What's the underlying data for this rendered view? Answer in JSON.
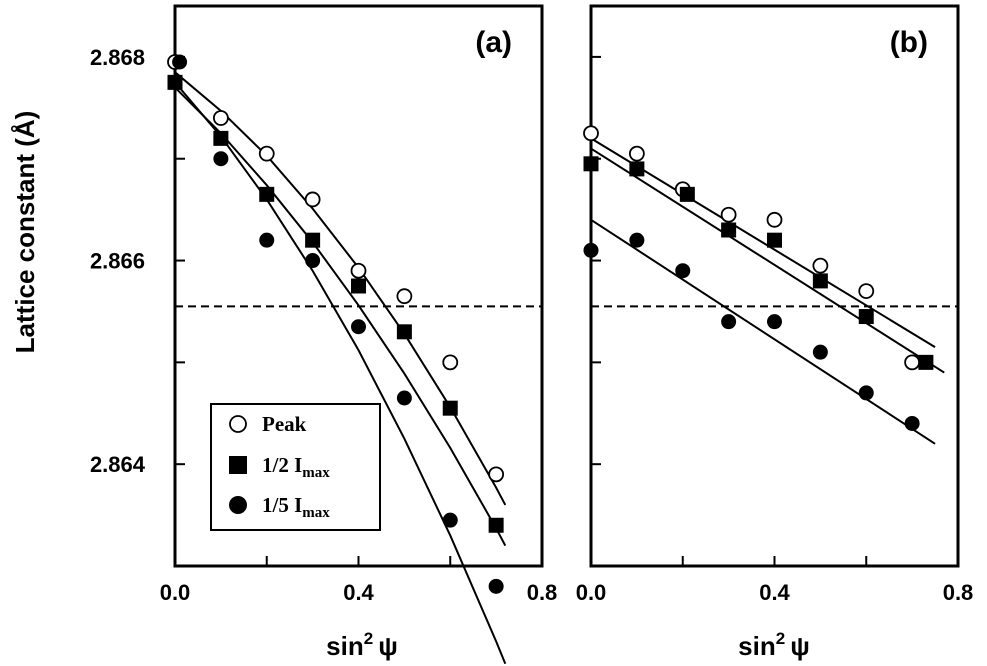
{
  "chart_data": [
    {
      "type": "scatter",
      "panel_label": "(a)",
      "xlabel": "sin",
      "xlabel_sup": "2",
      "xlabel_tail": "ψ",
      "ylabel": "Lattice constant (Å)",
      "xlim": [
        0.0,
        0.8
      ],
      "ylim": [
        2.863,
        2.8685
      ],
      "x_ticks": [
        "0.0",
        "0.4",
        "0.8"
      ],
      "y_ticks": [
        "2.868",
        "2.866",
        "2.864"
      ],
      "reference_line": 2.86555,
      "series": [
        {
          "name": "Peak",
          "marker": "open-circle",
          "points": [
            [
              0.0,
              2.86795
            ],
            [
              0.1,
              2.8674
            ],
            [
              0.2,
              2.86705
            ],
            [
              0.3,
              2.8666
            ],
            [
              0.4,
              2.8659
            ],
            [
              0.5,
              2.86565
            ],
            [
              0.6,
              2.865
            ],
            [
              0.7,
              2.8639
            ]
          ],
          "fit": [
            [
              0.0,
              2.86785
            ],
            [
              0.1,
              2.86747
            ],
            [
              0.2,
              2.86703
            ],
            [
              0.3,
              2.86651
            ],
            [
              0.4,
              2.86593
            ],
            [
              0.5,
              2.86528
            ],
            [
              0.6,
              2.86456
            ],
            [
              0.7,
              2.86377
            ],
            [
              0.72,
              2.8636
            ]
          ]
        },
        {
          "name": "1/2 I",
          "name_sub": "max",
          "marker": "filled-square",
          "points": [
            [
              0.0,
              2.86775
            ],
            [
              0.1,
              2.8672
            ],
            [
              0.2,
              2.86665
            ],
            [
              0.3,
              2.8662
            ],
            [
              0.4,
              2.86575
            ],
            [
              0.5,
              2.8653
            ],
            [
              0.6,
              2.86455
            ],
            [
              0.7,
              2.8634
            ]
          ],
          "fit": [
            [
              0.0,
              2.8677
            ],
            [
              0.1,
              2.86725
            ],
            [
              0.2,
              2.86674
            ],
            [
              0.3,
              2.86618
            ],
            [
              0.4,
              2.86556
            ],
            [
              0.5,
              2.86489
            ],
            [
              0.6,
              2.86416
            ],
            [
              0.7,
              2.86337
            ],
            [
              0.72,
              2.8632
            ]
          ]
        },
        {
          "name": "1/5 I",
          "name_sub": "max",
          "marker": "filled-circle",
          "points": [
            [
              0.01,
              2.86795
            ],
            [
              0.1,
              2.867
            ],
            [
              0.2,
              2.8662
            ],
            [
              0.3,
              2.866
            ],
            [
              0.4,
              2.86535
            ],
            [
              0.5,
              2.86465
            ],
            [
              0.6,
              2.86345
            ],
            [
              0.7,
              2.8628
            ]
          ],
          "fit": [
            [
              0.0,
              2.86775
            ],
            [
              0.1,
              2.86722
            ],
            [
              0.2,
              2.8666
            ],
            [
              0.3,
              2.8659
            ],
            [
              0.4,
              2.86512
            ],
            [
              0.5,
              2.86425
            ],
            [
              0.6,
              2.8633
            ],
            [
              0.7,
              2.86226
            ],
            [
              0.72,
              2.86204
            ]
          ]
        }
      ],
      "legend": "bottom-left"
    },
    {
      "type": "scatter",
      "panel_label": "(b)",
      "xlabel": "sin",
      "xlabel_sup": "2",
      "xlabel_tail": "ψ",
      "xlim": [
        0.0,
        0.8
      ],
      "ylim": [
        2.863,
        2.8685
      ],
      "x_ticks": [
        "0.0",
        "0.4",
        "0.8"
      ],
      "reference_line": 2.86555,
      "series": [
        {
          "name": "Peak",
          "marker": "open-circle",
          "points": [
            [
              0.0,
              2.86725
            ],
            [
              0.1,
              2.86705
            ],
            [
              0.2,
              2.8667
            ],
            [
              0.3,
              2.86645
            ],
            [
              0.4,
              2.8664
            ],
            [
              0.5,
              2.86595
            ],
            [
              0.6,
              2.8657
            ],
            [
              0.7,
              2.865
            ]
          ],
          "fit": [
            [
              0.0,
              2.8672
            ],
            [
              0.75,
              2.86515
            ]
          ]
        },
        {
          "name": "1/2 I",
          "name_sub": "max",
          "marker": "filled-square",
          "points": [
            [
              0.0,
              2.86695
            ],
            [
              0.1,
              2.8669
            ],
            [
              0.21,
              2.86665
            ],
            [
              0.3,
              2.8663
            ],
            [
              0.4,
              2.8662
            ],
            [
              0.5,
              2.8658
            ],
            [
              0.6,
              2.86545
            ],
            [
              0.73,
              2.865
            ]
          ],
          "fit": [
            [
              0.0,
              2.8671
            ],
            [
              0.77,
              2.8649
            ]
          ]
        },
        {
          "name": "1/5 I",
          "name_sub": "max",
          "marker": "filled-circle",
          "points": [
            [
              0.0,
              2.8661
            ],
            [
              0.1,
              2.8662
            ],
            [
              0.2,
              2.8659
            ],
            [
              0.3,
              2.8654
            ],
            [
              0.4,
              2.8654
            ],
            [
              0.5,
              2.8651
            ],
            [
              0.6,
              2.8647
            ],
            [
              0.7,
              2.8644
            ]
          ],
          "fit": [
            [
              0.0,
              2.8664
            ],
            [
              0.75,
              2.8642
            ]
          ]
        }
      ]
    }
  ]
}
